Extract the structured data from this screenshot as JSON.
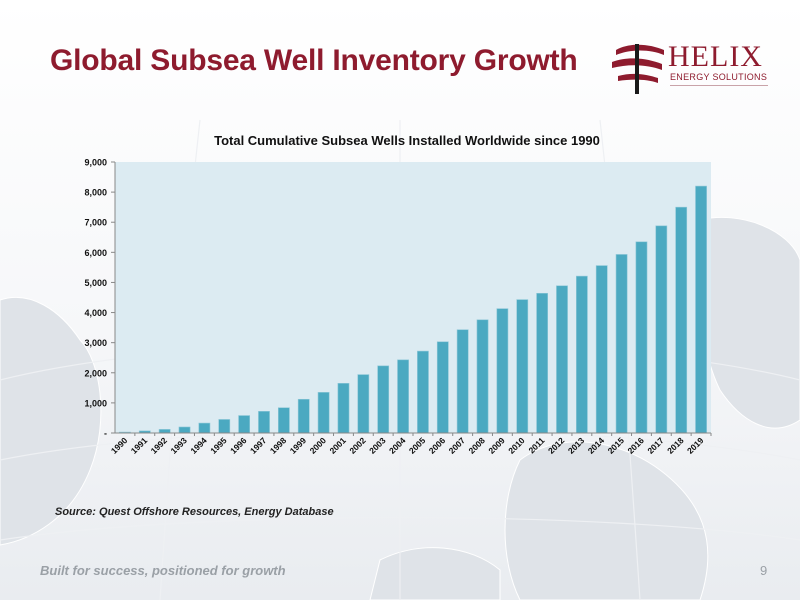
{
  "slide": {
    "title": "Global Subsea Well Inventory Growth",
    "source": "Source: Quest Offshore Resources, Energy Database",
    "footer": "Built for success, positioned for growth",
    "page_number": "9"
  },
  "logo": {
    "name": "HELIX",
    "subtitle": "ENERGY SOLUTIONS",
    "icon": "helix-icon",
    "color": "#8e1b2e"
  },
  "colors": {
    "title": "#8e1b2e",
    "bar": "#4ba9c1",
    "plot_background": "#dcebf2"
  },
  "chart_data": {
    "type": "bar",
    "title": "Total Cumulative Subsea Wells Installed Worldwide since 1990",
    "xlabel": "",
    "ylabel": "",
    "categories": [
      "1990",
      "1991",
      "1992",
      "1993",
      "1994",
      "1995",
      "1996",
      "1997",
      "1998",
      "1999",
      "2000",
      "2001",
      "2002",
      "2003",
      "2004",
      "2005",
      "2006",
      "2007",
      "2008",
      "2009",
      "2010",
      "2011",
      "2012",
      "2013",
      "2014",
      "2015",
      "2016",
      "2017",
      "2018",
      "2019"
    ],
    "values": [
      30,
      70,
      120,
      200,
      330,
      450,
      580,
      720,
      840,
      1120,
      1350,
      1650,
      1940,
      2230,
      2430,
      2720,
      3030,
      3430,
      3760,
      4130,
      4430,
      4640,
      4890,
      5210,
      5560,
      5930,
      6350,
      6880,
      7500,
      8200
    ],
    "ylim": [
      0,
      9000
    ],
    "yticks": [
      0,
      1000,
      2000,
      3000,
      4000,
      5000,
      6000,
      7000,
      8000,
      9000
    ],
    "ytick_labels": [
      "-",
      "1,000",
      "2,000",
      "3,000",
      "4,000",
      "5,000",
      "6,000",
      "7,000",
      "8,000",
      "9,000"
    ],
    "grid": false,
    "legend": "none"
  }
}
